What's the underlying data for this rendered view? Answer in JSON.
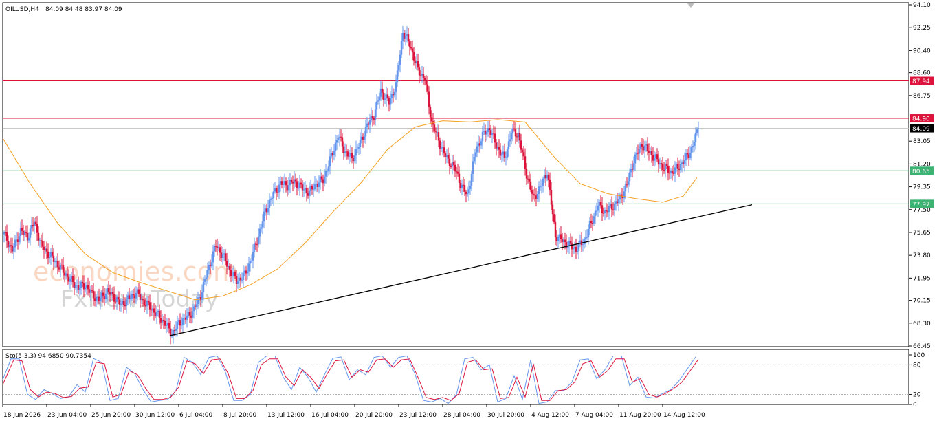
{
  "header": {
    "symbol": "OILUSD,H4",
    "ohlc": "84.09 84.48 83.97 84.09",
    "stoch_label": "Sto(5,3,3) 94.6850 90.7354"
  },
  "watermark": {
    "line1": "economies.com",
    "line2": "FxNewsToday"
  },
  "price_axis": {
    "ticks": [
      "94.10",
      "92.25",
      "90.40",
      "88.60",
      "86.75",
      "83.05",
      "81.20",
      "79.35",
      "77.50",
      "75.65",
      "73.80",
      "71.95",
      "70.15",
      "68.30",
      "66.45"
    ],
    "current": "84.09"
  },
  "stoch_axis": {
    "ticks": [
      "100",
      "80",
      "20",
      "0"
    ]
  },
  "time_axis": [
    "18 Jun 2026",
    "23 Jun 04:00",
    "25 Jun 20:00",
    "30 Jun 12:00",
    "6 Jul 04:00",
    "8 Jul 20:00",
    "13 Jul 12:00",
    "16 Jul 04:00",
    "20 Jul 20:00",
    "23 Jul 12:00",
    "28 Jul 04:00",
    "30 Jul 20:00",
    "4 Aug 12:00",
    "7 Aug 04:00",
    "11 Aug 20:00",
    "14 Aug 12:00"
  ],
  "levels": [
    {
      "label": "87.94",
      "color": "#dc143c"
    },
    {
      "label": "84.90",
      "color": "#dc143c"
    },
    {
      "label": "80.65",
      "color": "#3cb371"
    },
    {
      "label": "77.97",
      "color": "#3cb371"
    }
  ],
  "colors": {
    "bull": "#6495ed",
    "bear": "#dc143c",
    "ma": "#f4a020",
    "trend": "#000000",
    "stoch_main": "#6495ed",
    "stoch_signal": "#dc143c"
  },
  "chart_data": {
    "type": "candlestick",
    "ylim": [
      66.45,
      94.1
    ],
    "close_path": [
      [
        0,
        75.5
      ],
      [
        6,
        74.2
      ],
      [
        12,
        75.8
      ],
      [
        17,
        75.3
      ],
      [
        22,
        76.5
      ],
      [
        27,
        74.6
      ],
      [
        33,
        73.8
      ],
      [
        38,
        73.2
      ],
      [
        43,
        72.5
      ],
      [
        48,
        71.8
      ],
      [
        54,
        71.2
      ],
      [
        59,
        71.4
      ],
      [
        64,
        70.6
      ],
      [
        69,
        70.2
      ],
      [
        75,
        70.9
      ],
      [
        80,
        70.4
      ],
      [
        85,
        69.8
      ],
      [
        91,
        70.3
      ],
      [
        96,
        70.8
      ],
      [
        101,
        70.1
      ],
      [
        106,
        69.6
      ],
      [
        112,
        68.9
      ],
      [
        117,
        68.3
      ],
      [
        122,
        67.4
      ],
      [
        127,
        68.3
      ],
      [
        133,
        68.8
      ],
      [
        138,
        69.4
      ],
      [
        143,
        70.6
      ],
      [
        148,
        72.5
      ],
      [
        154,
        74.6
      ],
      [
        159,
        73.8
      ],
      [
        164,
        72.6
      ],
      [
        169,
        71.7
      ],
      [
        175,
        72.2
      ],
      [
        180,
        73.6
      ],
      [
        185,
        75.4
      ],
      [
        190,
        77.4
      ],
      [
        196,
        78.8
      ],
      [
        201,
        79.6
      ],
      [
        206,
        79.5
      ],
      [
        211,
        79.8
      ],
      [
        217,
        79.2
      ],
      [
        222,
        78.9
      ],
      [
        227,
        79.6
      ],
      [
        232,
        79.9
      ],
      [
        238,
        81.8
      ],
      [
        243,
        83.5
      ],
      [
        248,
        82.2
      ],
      [
        253,
        81.6
      ],
      [
        259,
        82.9
      ],
      [
        264,
        84.3
      ],
      [
        269,
        85.2
      ],
      [
        274,
        87.1
      ],
      [
        280,
        86.2
      ],
      [
        285,
        87.6
      ],
      [
        290,
        91.9
      ],
      [
        295,
        90.9
      ],
      [
        301,
        88.8
      ],
      [
        306,
        88.1
      ],
      [
        311,
        84.6
      ],
      [
        316,
        83.1
      ],
      [
        322,
        81.6
      ],
      [
        327,
        81.0
      ],
      [
        332,
        79.6
      ],
      [
        337,
        78.6
      ],
      [
        343,
        82.3
      ],
      [
        348,
        83.5
      ],
      [
        353,
        84.1
      ],
      [
        358,
        82.7
      ],
      [
        364,
        81.6
      ],
      [
        369,
        83.8
      ],
      [
        374,
        83.6
      ],
      [
        380,
        80.4
      ],
      [
        385,
        78.4
      ],
      [
        390,
        79.3
      ],
      [
        395,
        80.6
      ],
      [
        401,
        75.4
      ],
      [
        406,
        75.0
      ],
      [
        411,
        74.6
      ],
      [
        416,
        74.3
      ],
      [
        422,
        75.0
      ],
      [
        427,
        76.4
      ],
      [
        432,
        77.9
      ],
      [
        437,
        77.3
      ],
      [
        443,
        77.8
      ],
      [
        448,
        78.4
      ],
      [
        453,
        79.5
      ],
      [
        458,
        81.5
      ],
      [
        464,
        82.8
      ],
      [
        469,
        82.2
      ],
      [
        474,
        81.6
      ],
      [
        479,
        81.0
      ],
      [
        485,
        80.5
      ],
      [
        490,
        80.9
      ],
      [
        495,
        81.5
      ],
      [
        500,
        82.4
      ],
      [
        505,
        84.09
      ]
    ],
    "ma_path": [
      [
        0,
        83.3
      ],
      [
        20,
        79.6
      ],
      [
        40,
        76.4
      ],
      [
        60,
        73.9
      ],
      [
        80,
        72.4
      ],
      [
        100,
        71.6
      ],
      [
        120,
        70.9
      ],
      [
        140,
        70.2
      ],
      [
        160,
        70.5
      ],
      [
        180,
        71.4
      ],
      [
        200,
        72.7
      ],
      [
        220,
        74.8
      ],
      [
        240,
        77.3
      ],
      [
        260,
        79.6
      ],
      [
        280,
        82.4
      ],
      [
        300,
        84.2
      ],
      [
        320,
        84.7
      ],
      [
        340,
        84.6
      ],
      [
        360,
        84.8
      ],
      [
        380,
        84.6
      ],
      [
        400,
        81.9
      ],
      [
        420,
        79.6
      ],
      [
        440,
        78.8
      ],
      [
        460,
        78.4
      ],
      [
        480,
        78.1
      ],
      [
        495,
        78.6
      ],
      [
        505,
        80.1
      ]
    ],
    "trendline": [
      [
        122,
        67.3
      ],
      [
        545,
        77.9
      ]
    ],
    "stochastic": {
      "main": [
        [
          0,
          50
        ],
        [
          6,
          92
        ],
        [
          12,
          92
        ],
        [
          18,
          20
        ],
        [
          24,
          10
        ],
        [
          30,
          30
        ],
        [
          36,
          22
        ],
        [
          42,
          12
        ],
        [
          48,
          15
        ],
        [
          54,
          40
        ],
        [
          60,
          25
        ],
        [
          66,
          93
        ],
        [
          72,
          85
        ],
        [
          78,
          8
        ],
        [
          84,
          12
        ],
        [
          90,
          75
        ],
        [
          96,
          62
        ],
        [
          102,
          30
        ],
        [
          108,
          5
        ],
        [
          114,
          8
        ],
        [
          120,
          10
        ],
        [
          126,
          28
        ],
        [
          132,
          95
        ],
        [
          138,
          85
        ],
        [
          144,
          60
        ],
        [
          150,
          95
        ],
        [
          156,
          98
        ],
        [
          162,
          65
        ],
        [
          168,
          8
        ],
        [
          174,
          8
        ],
        [
          180,
          20
        ],
        [
          186,
          85
        ],
        [
          192,
          98
        ],
        [
          198,
          98
        ],
        [
          204,
          55
        ],
        [
          210,
          30
        ],
        [
          216,
          75
        ],
        [
          222,
          55
        ],
        [
          228,
          25
        ],
        [
          234,
          60
        ],
        [
          240,
          93
        ],
        [
          246,
          96
        ],
        [
          252,
          50
        ],
        [
          258,
          70
        ],
        [
          264,
          60
        ],
        [
          270,
          95
        ],
        [
          276,
          98
        ],
        [
          282,
          75
        ],
        [
          288,
          95
        ],
        [
          294,
          98
        ],
        [
          300,
          60
        ],
        [
          306,
          8
        ],
        [
          312,
          5
        ],
        [
          318,
          12
        ],
        [
          324,
          2
        ],
        [
          330,
          20
        ],
        [
          336,
          92
        ],
        [
          342,
          95
        ],
        [
          348,
          70
        ],
        [
          354,
          80
        ],
        [
          360,
          5
        ],
        [
          366,
          12
        ],
        [
          372,
          58
        ],
        [
          378,
          10
        ],
        [
          384,
          90
        ],
        [
          390,
          2
        ],
        [
          396,
          5
        ],
        [
          402,
          28
        ],
        [
          408,
          28
        ],
        [
          414,
          45
        ],
        [
          420,
          90
        ],
        [
          426,
          92
        ],
        [
          432,
          52
        ],
        [
          438,
          70
        ],
        [
          444,
          98
        ],
        [
          450,
          98
        ],
        [
          456,
          38
        ],
        [
          462,
          55
        ],
        [
          468,
          15
        ],
        [
          474,
          13
        ],
        [
          480,
          22
        ],
        [
          486,
          30
        ],
        [
          492,
          48
        ],
        [
          498,
          72
        ],
        [
          504,
          96
        ]
      ],
      "signal": [
        [
          0,
          40
        ],
        [
          8,
          90
        ],
        [
          14,
          88
        ],
        [
          20,
          30
        ],
        [
          26,
          15
        ],
        [
          32,
          25
        ],
        [
          38,
          22
        ],
        [
          44,
          14
        ],
        [
          50,
          16
        ],
        [
          56,
          33
        ],
        [
          62,
          35
        ],
        [
          68,
          85
        ],
        [
          74,
          82
        ],
        [
          80,
          15
        ],
        [
          86,
          20
        ],
        [
          92,
          68
        ],
        [
          98,
          60
        ],
        [
          104,
          32
        ],
        [
          110,
          10
        ],
        [
          116,
          10
        ],
        [
          122,
          14
        ],
        [
          128,
          35
        ],
        [
          134,
          88
        ],
        [
          140,
          82
        ],
        [
          146,
          62
        ],
        [
          152,
          90
        ],
        [
          158,
          92
        ],
        [
          164,
          62
        ],
        [
          170,
          12
        ],
        [
          176,
          12
        ],
        [
          182,
          28
        ],
        [
          188,
          80
        ],
        [
          194,
          92
        ],
        [
          200,
          92
        ],
        [
          206,
          55
        ],
        [
          212,
          38
        ],
        [
          218,
          70
        ],
        [
          224,
          55
        ],
        [
          230,
          32
        ],
        [
          236,
          62
        ],
        [
          242,
          88
        ],
        [
          248,
          90
        ],
        [
          254,
          55
        ],
        [
          260,
          70
        ],
        [
          266,
          65
        ],
        [
          272,
          90
        ],
        [
          278,
          92
        ],
        [
          284,
          75
        ],
        [
          290,
          90
        ],
        [
          296,
          92
        ],
        [
          302,
          55
        ],
        [
          308,
          14
        ],
        [
          314,
          10
        ],
        [
          320,
          14
        ],
        [
          326,
          8
        ],
        [
          332,
          22
        ],
        [
          338,
          85
        ],
        [
          344,
          90
        ],
        [
          350,
          70
        ],
        [
          356,
          72
        ],
        [
          362,
          12
        ],
        [
          368,
          14
        ],
        [
          374,
          55
        ],
        [
          380,
          15
        ],
        [
          386,
          82
        ],
        [
          392,
          8
        ],
        [
          398,
          8
        ],
        [
          404,
          28
        ],
        [
          410,
          30
        ],
        [
          416,
          45
        ],
        [
          422,
          82
        ],
        [
          428,
          88
        ],
        [
          434,
          55
        ],
        [
          440,
          68
        ],
        [
          446,
          92
        ],
        [
          452,
          92
        ],
        [
          458,
          45
        ],
        [
          464,
          52
        ],
        [
          470,
          20
        ],
        [
          476,
          15
        ],
        [
          482,
          22
        ],
        [
          488,
          32
        ],
        [
          494,
          45
        ],
        [
          500,
          68
        ],
        [
          506,
          91
        ]
      ],
      "levels": [
        80,
        20
      ]
    }
  }
}
